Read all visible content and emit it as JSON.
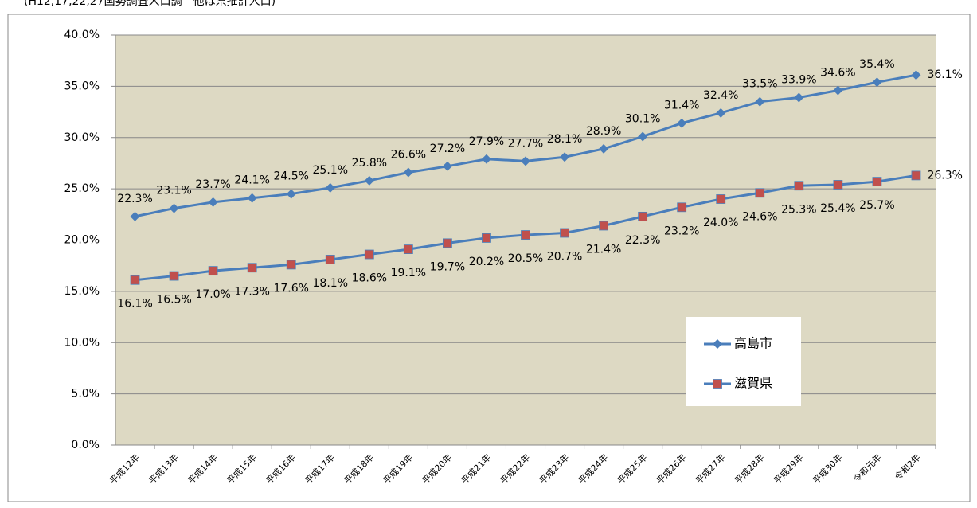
{
  "chart_data": {
    "type": "line",
    "subtitle": "(H12,17,22,27国勢調査人口調　他は県推計人口)",
    "categories": [
      "平成12年",
      "平成13年",
      "平成14年",
      "平成15年",
      "平成16年",
      "平成17年",
      "平成18年",
      "平成19年",
      "平成20年",
      "平成21年",
      "平成22年",
      "平成23年",
      "平成24年",
      "平成25年",
      "平成26年",
      "平成27年",
      "平成28年",
      "平成29年",
      "平成30年",
      "令和元年",
      "令和2年"
    ],
    "series": [
      {
        "name": "高島市",
        "color": "#4a7ebb",
        "line_color": "#4a7ebb",
        "marker": "diamond",
        "values": [
          22.3,
          23.1,
          23.7,
          24.1,
          24.5,
          25.1,
          25.8,
          26.6,
          27.2,
          27.9,
          27.7,
          28.1,
          28.9,
          30.1,
          31.4,
          32.4,
          33.5,
          33.9,
          34.6,
          35.4,
          36.1
        ],
        "value_labels": [
          "22.3%",
          "23.1%",
          "23.7%",
          "24.1%",
          "24.5%",
          "25.1%",
          "25.8%",
          "26.6%",
          "27.2%",
          "27.9%",
          "27.7%",
          "28.1%",
          "28.9%",
          "30.1%",
          "31.4%",
          "32.4%",
          "33.5%",
          "33.9%",
          "34.6%",
          "35.4%",
          "36.1%"
        ]
      },
      {
        "name": "滋賀県",
        "color": "#c0504d",
        "line_color": "#4a7ebb",
        "marker": "square",
        "values": [
          16.1,
          16.5,
          17.0,
          17.3,
          17.6,
          18.1,
          18.6,
          19.1,
          19.7,
          20.2,
          20.5,
          20.7,
          21.4,
          22.3,
          23.2,
          24.0,
          24.6,
          25.3,
          25.4,
          25.7,
          26.3
        ],
        "value_labels": [
          "16.1%",
          "16.5%",
          "17.0%",
          "17.3%",
          "17.6%",
          "18.1%",
          "18.6%",
          "19.1%",
          "19.7%",
          "20.2%",
          "20.5%",
          "20.7%",
          "21.4%",
          "22.3%",
          "23.2%",
          "24.0%",
          "24.6%",
          "25.3%",
          "25.4%",
          "25.7%",
          "26.3%"
        ]
      }
    ],
    "ylim": [
      0,
      40
    ],
    "yticks": [
      {
        "value": 0,
        "label": "0.0%"
      },
      {
        "value": 5,
        "label": "5.0%"
      },
      {
        "value": 10,
        "label": "10.0%"
      },
      {
        "value": 15,
        "label": "15.0%"
      },
      {
        "value": 20,
        "label": "20.0%"
      },
      {
        "value": 25,
        "label": "25.0%"
      },
      {
        "value": 30,
        "label": "30.0%"
      },
      {
        "value": 35,
        "label": "35.0%"
      },
      {
        "value": 40,
        "label": "40.0%"
      }
    ],
    "grid": true,
    "plot_background": "#ddd9c3"
  }
}
